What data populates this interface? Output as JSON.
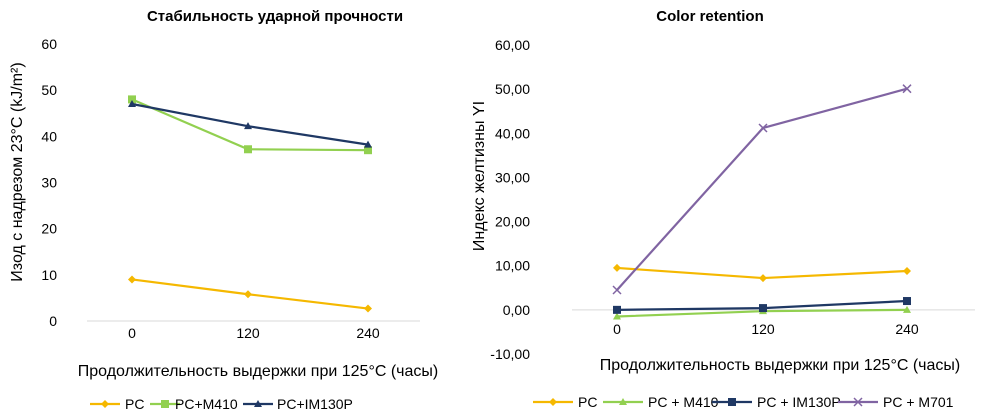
{
  "chart_data": [
    {
      "type": "line",
      "title": "Стабильность ударной прочности",
      "xlabel": "Продолжительность выдержки при 125°С (часы)",
      "ylabel": "Изод с надрезом 23°С (kJ/m²)",
      "categories": [
        "0",
        "120",
        "240"
      ],
      "ylim": [
        0,
        60
      ],
      "yticks": [
        "0",
        "10",
        "20",
        "30",
        "40",
        "50",
        "60"
      ],
      "grid": false,
      "legend_position": "bottom",
      "series": [
        {
          "name": "PC",
          "values": [
            9,
            5.8,
            2.7
          ],
          "color": "#f5b800",
          "marker": "diamond"
        },
        {
          "name": "PC+M410",
          "values": [
            48,
            37.2,
            37
          ],
          "color": "#92d050",
          "marker": "square"
        },
        {
          "name": "PC+IM130P",
          "values": [
            47,
            42.2,
            38.2
          ],
          "color": "#1f3864",
          "marker": "triangle"
        }
      ]
    },
    {
      "type": "line",
      "title": "Color retention",
      "xlabel": "Продолжительность выдержки при 125°С (часы)",
      "ylabel": "Индекс желтизны YI",
      "categories": [
        "0",
        "120",
        "240"
      ],
      "ylim": [
        -10,
        60
      ],
      "yticks": [
        "-10,00",
        "0,00",
        "10,00",
        "20,00",
        "30,00",
        "40,00",
        "50,00",
        "60,00"
      ],
      "grid": false,
      "legend_position": "bottom",
      "series": [
        {
          "name": "PC",
          "values": [
            9.5,
            7.2,
            8.8
          ],
          "color": "#f5b800",
          "marker": "diamond"
        },
        {
          "name": "PC + M410",
          "values": [
            -1.5,
            -0.3,
            0
          ],
          "color": "#92d050",
          "marker": "triangle"
        },
        {
          "name": "PC + IM130P",
          "values": [
            0,
            0.4,
            2
          ],
          "color": "#1f3864",
          "marker": "square"
        },
        {
          "name": "PC + M701",
          "values": [
            4.5,
            41.2,
            50.1
          ],
          "color": "#8064a2",
          "marker": "x"
        }
      ]
    }
  ]
}
